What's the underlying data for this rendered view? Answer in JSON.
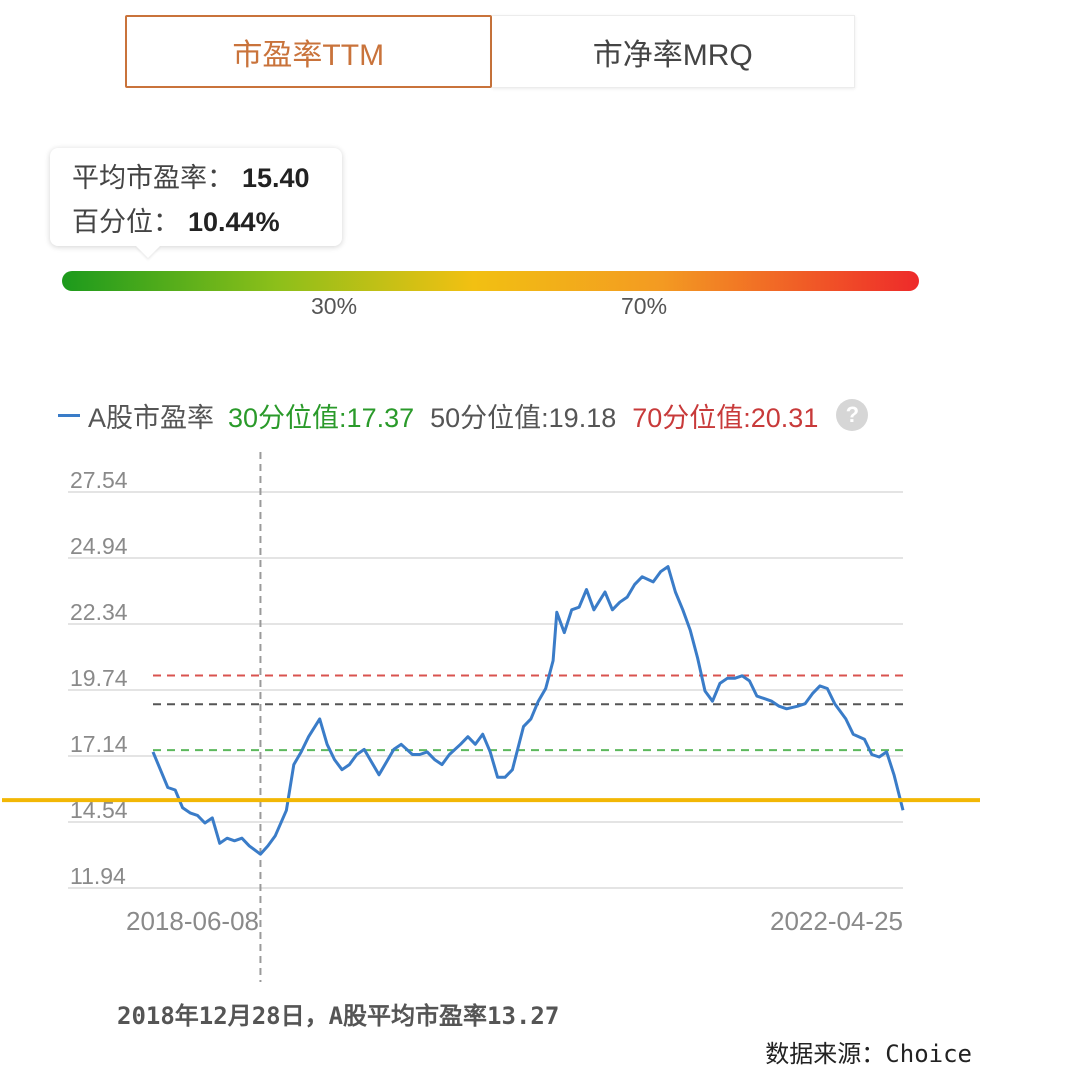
{
  "tabs": [
    {
      "label": "市盈率TTM"
    },
    {
      "label": "市净率MRQ"
    }
  ],
  "tooltip": {
    "avg_label": "平均市盈率：",
    "avg_value": "15.40",
    "pct_label": "百分位：",
    "pct_value": "10.44%"
  },
  "percentile_bar": {
    "marks": [
      "30%",
      "70%"
    ],
    "current_percentile": 10.44,
    "colors": [
      "#1c9a1c",
      "#f2c012",
      "#ee2a2a"
    ]
  },
  "legend": {
    "series_name": "A股市盈率",
    "p30": "30分位值:17.37",
    "p50": "50分位值:19.18",
    "p70": "70分位值:20.31",
    "help_icon": "question-circle-icon"
  },
  "chart_data": {
    "type": "line",
    "xlabel": "",
    "ylabel": "",
    "x_start": "2018-06-08",
    "x_end": "2022-04-25",
    "y_ticks": [
      "27.54",
      "24.94",
      "22.34",
      "19.74",
      "17.14",
      "14.54",
      "11.94"
    ],
    "ylim": [
      11.94,
      27.54
    ],
    "series": [
      {
        "name": "A股市盈率",
        "color": "#3a7cc8",
        "points": [
          [
            "2018-06-08",
            17.3
          ],
          [
            "2018-06-22",
            16.6
          ],
          [
            "2018-07-06",
            15.9
          ],
          [
            "2018-07-20",
            15.8
          ],
          [
            "2018-08-03",
            15.1
          ],
          [
            "2018-08-17",
            14.9
          ],
          [
            "2018-08-31",
            14.8
          ],
          [
            "2018-09-14",
            14.5
          ],
          [
            "2018-09-28",
            14.7
          ],
          [
            "2018-10-12",
            13.7
          ],
          [
            "2018-10-26",
            13.9
          ],
          [
            "2018-11-09",
            13.8
          ],
          [
            "2018-11-23",
            13.9
          ],
          [
            "2018-12-07",
            13.6
          ],
          [
            "2018-12-28",
            13.27
          ],
          [
            "2019-01-11",
            13.6
          ],
          [
            "2019-01-25",
            14.0
          ],
          [
            "2019-02-15",
            15.0
          ],
          [
            "2019-03-01",
            16.8
          ],
          [
            "2019-03-15",
            17.3
          ],
          [
            "2019-03-29",
            17.9
          ],
          [
            "2019-04-19",
            18.6
          ],
          [
            "2019-05-03",
            17.6
          ],
          [
            "2019-05-17",
            17.0
          ],
          [
            "2019-05-31",
            16.6
          ],
          [
            "2019-06-14",
            16.8
          ],
          [
            "2019-06-28",
            17.2
          ],
          [
            "2019-07-12",
            17.4
          ],
          [
            "2019-07-26",
            16.9
          ],
          [
            "2019-08-09",
            16.4
          ],
          [
            "2019-08-23",
            16.9
          ],
          [
            "2019-09-06",
            17.4
          ],
          [
            "2019-09-20",
            17.6
          ],
          [
            "2019-10-11",
            17.2
          ],
          [
            "2019-10-25",
            17.2
          ],
          [
            "2019-11-08",
            17.3
          ],
          [
            "2019-11-22",
            17.0
          ],
          [
            "2019-12-06",
            16.8
          ],
          [
            "2019-12-20",
            17.2
          ],
          [
            "2020-01-10",
            17.6
          ],
          [
            "2020-01-24",
            17.9
          ],
          [
            "2020-02-07",
            17.6
          ],
          [
            "2020-02-21",
            18.0
          ],
          [
            "2020-03-06",
            17.3
          ],
          [
            "2020-03-20",
            16.3
          ],
          [
            "2020-04-03",
            16.3
          ],
          [
            "2020-04-17",
            16.6
          ],
          [
            "2020-05-08",
            18.3
          ],
          [
            "2020-05-22",
            18.6
          ],
          [
            "2020-06-05",
            19.3
          ],
          [
            "2020-06-19",
            19.8
          ],
          [
            "2020-07-03",
            20.9
          ],
          [
            "2020-07-10",
            22.8
          ],
          [
            "2020-07-24",
            22.0
          ],
          [
            "2020-08-07",
            22.9
          ],
          [
            "2020-08-21",
            23.0
          ],
          [
            "2020-09-04",
            23.7
          ],
          [
            "2020-09-18",
            22.9
          ],
          [
            "2020-10-09",
            23.6
          ],
          [
            "2020-10-23",
            22.9
          ],
          [
            "2020-11-06",
            23.2
          ],
          [
            "2020-11-20",
            23.4
          ],
          [
            "2020-12-04",
            23.9
          ],
          [
            "2020-12-18",
            24.2
          ],
          [
            "2021-01-08",
            24.0
          ],
          [
            "2021-01-22",
            24.4
          ],
          [
            "2021-02-05",
            24.6
          ],
          [
            "2021-02-19",
            23.6
          ],
          [
            "2021-03-05",
            22.9
          ],
          [
            "2021-03-19",
            22.1
          ],
          [
            "2021-04-02",
            21.0
          ],
          [
            "2021-04-16",
            19.7
          ],
          [
            "2021-04-30",
            19.3
          ],
          [
            "2021-05-14",
            20.0
          ],
          [
            "2021-05-28",
            20.2
          ],
          [
            "2021-06-11",
            20.2
          ],
          [
            "2021-06-25",
            20.3
          ],
          [
            "2021-07-09",
            20.1
          ],
          [
            "2021-07-23",
            19.5
          ],
          [
            "2021-08-06",
            19.4
          ],
          [
            "2021-08-20",
            19.3
          ],
          [
            "2021-09-03",
            19.1
          ],
          [
            "2021-09-17",
            19.0
          ],
          [
            "2021-10-08",
            19.1
          ],
          [
            "2021-10-22",
            19.2
          ],
          [
            "2021-11-05",
            19.6
          ],
          [
            "2021-11-19",
            19.9
          ],
          [
            "2021-12-03",
            19.8
          ],
          [
            "2021-12-17",
            19.2
          ],
          [
            "2022-01-07",
            18.6
          ],
          [
            "2022-01-21",
            18.0
          ],
          [
            "2022-02-11",
            17.8
          ],
          [
            "2022-02-25",
            17.2
          ],
          [
            "2022-03-11",
            17.1
          ],
          [
            "2022-03-25",
            17.3
          ],
          [
            "2022-04-08",
            16.4
          ],
          [
            "2022-04-25",
            15.0
          ]
        ]
      }
    ],
    "reference_lines": [
      {
        "name": "30分位值",
        "value": 17.37,
        "color": "#5cb85c",
        "style": "dashed"
      },
      {
        "name": "50分位值",
        "value": 19.18,
        "color": "#555555",
        "style": "dashed"
      },
      {
        "name": "70分位值",
        "value": 20.31,
        "color": "#d9534f",
        "style": "dashed"
      },
      {
        "name": "平均市盈率",
        "value": 15.4,
        "color": "#f2b705",
        "style": "solid"
      }
    ],
    "cursor_date": "2018-12-28",
    "grid": true
  },
  "caption": "2018年12月28日，A股平均市盈率13.27",
  "source": "数据来源：Choice"
}
